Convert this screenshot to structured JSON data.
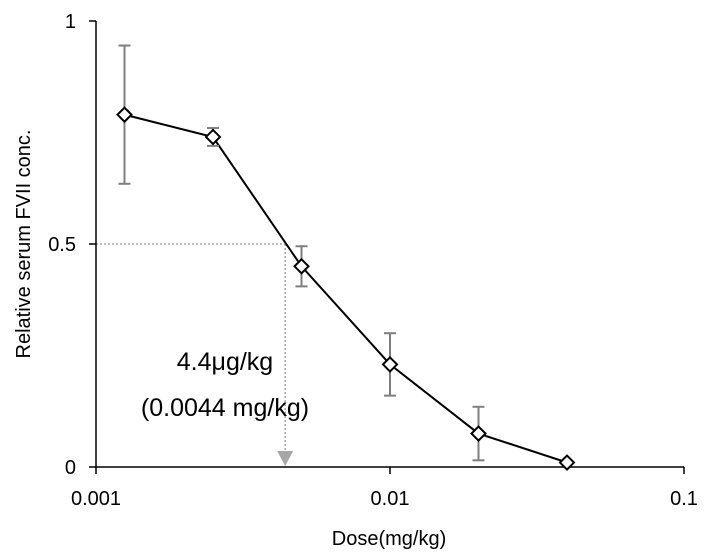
{
  "chart_data": {
    "type": "scatter",
    "title": "",
    "xlabel": "Dose(mg/kg)",
    "ylabel": "Relative  serum FVII conc.",
    "xscale": "log",
    "xlim": [
      0.001,
      0.1
    ],
    "ylim": [
      0,
      1
    ],
    "grid": false,
    "legend": "none",
    "x_ticks": [
      {
        "value": 0.001,
        "label": "0.001"
      },
      {
        "value": 0.01,
        "label": "0.01"
      },
      {
        "value": 0.1,
        "label": "0.1"
      }
    ],
    "y_ticks": [
      {
        "value": 0,
        "label": "0"
      },
      {
        "value": 0.5,
        "label": "0.5"
      },
      {
        "value": 1,
        "label": "1"
      }
    ],
    "series": [
      {
        "marker": "diamond",
        "line": "solid",
        "color": "#000000",
        "error_bar_color": "#7f7f7f",
        "points": [
          {
            "x": 0.00125,
            "y": 0.79,
            "err": 0.155
          },
          {
            "x": 0.0025,
            "y": 0.74,
            "err": 0.02
          },
          {
            "x": 0.005,
            "y": 0.45,
            "err": 0.045
          },
          {
            "x": 0.01,
            "y": 0.23,
            "err": 0.07
          },
          {
            "x": 0.02,
            "y": 0.075,
            "err": 0.06
          },
          {
            "x": 0.04,
            "y": 0.01,
            "err": 0.0
          }
        ]
      }
    ],
    "annotation": {
      "line1": "4.4μg/kg",
      "line2": "(0.0044 mg/kg)",
      "x": 0.0044,
      "y": 0.5,
      "reference_color": "#a6a6a6"
    }
  }
}
